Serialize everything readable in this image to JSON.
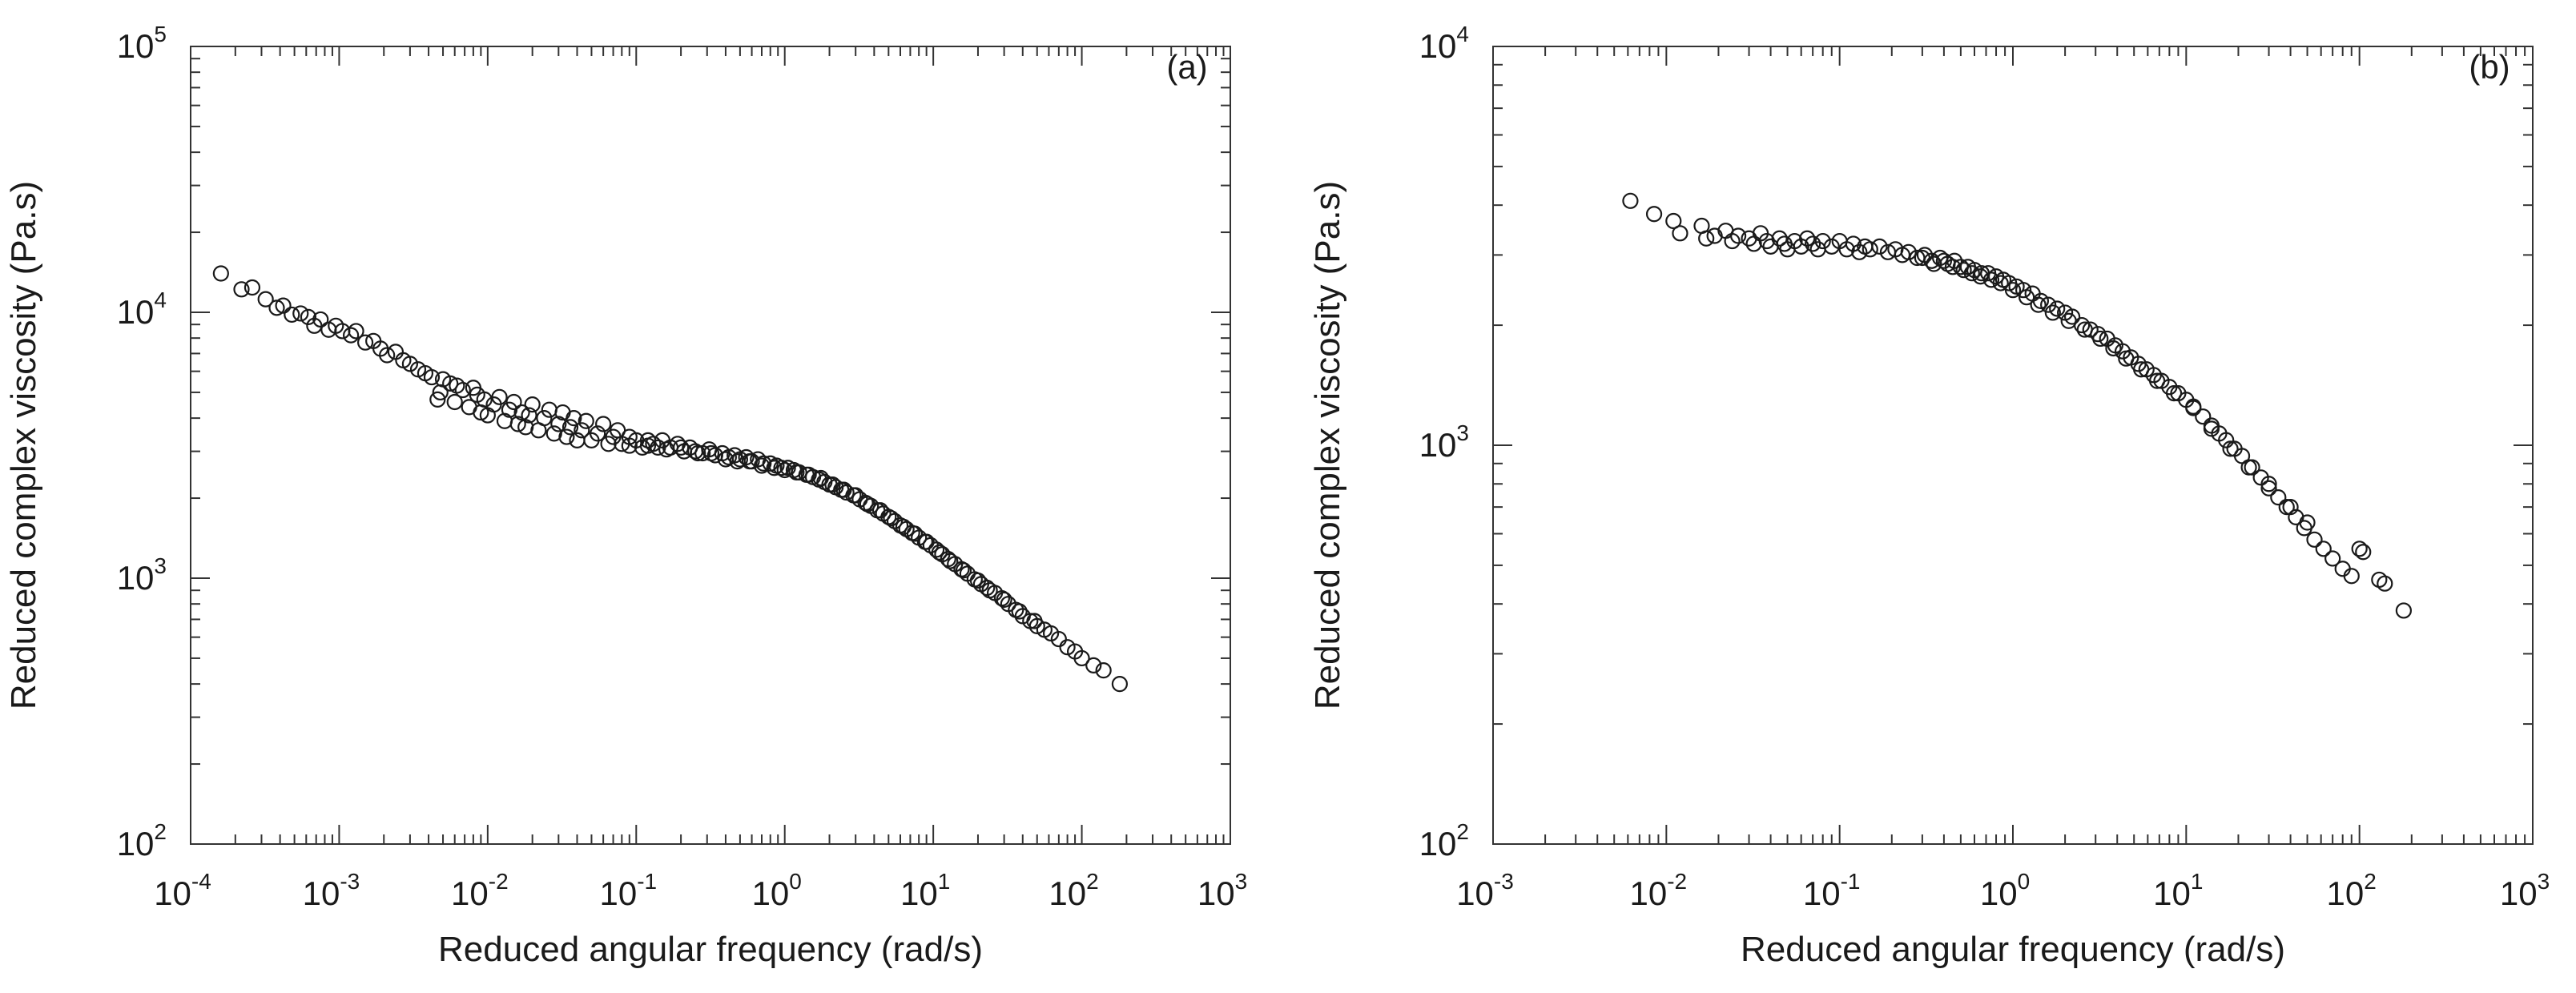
{
  "chart_data": [
    {
      "type": "scatter",
      "panel_label": "(a)",
      "xlabel": "Reduced angular frequency (rad/s)",
      "ylabel": "Reduced complex viscosity (Pa.s)",
      "x_scale": "log",
      "y_scale": "log",
      "xlim": [
        0.0001,
        1000
      ],
      "ylim": [
        100,
        100000
      ],
      "x_ticks": [
        {
          "base": "10",
          "exp": "-4",
          "value": 0.0001
        },
        {
          "base": "10",
          "exp": "-3",
          "value": 0.001
        },
        {
          "base": "10",
          "exp": "-2",
          "value": 0.01
        },
        {
          "base": "10",
          "exp": "-1",
          "value": 0.1
        },
        {
          "base": "10",
          "exp": "0",
          "value": 1
        },
        {
          "base": "10",
          "exp": "1",
          "value": 10
        },
        {
          "base": "10",
          "exp": "2",
          "value": 100
        },
        {
          "base": "10",
          "exp": "3",
          "value": 1000
        }
      ],
      "y_ticks": [
        {
          "base": "10",
          "exp": "2",
          "value": 100
        },
        {
          "base": "10",
          "exp": "3",
          "value": 1000
        },
        {
          "base": "10",
          "exp": "4",
          "value": 10000
        },
        {
          "base": "10",
          "exp": "5",
          "value": 100000
        }
      ],
      "grid": false,
      "marker": "open-circle",
      "color": "#1a1a1a",
      "points": [
        [
          0.00016,
          14000
        ],
        [
          0.00022,
          12200
        ],
        [
          0.00026,
          12400
        ],
        [
          0.00032,
          11200
        ],
        [
          0.00038,
          10400
        ],
        [
          0.00042,
          10600
        ],
        [
          0.00048,
          9800
        ],
        [
          0.00055,
          9900
        ],
        [
          0.00062,
          9600
        ],
        [
          0.00068,
          8900
        ],
        [
          0.00075,
          9400
        ],
        [
          0.00085,
          8600
        ],
        [
          0.00095,
          8900
        ],
        [
          0.00105,
          8500
        ],
        [
          0.0012,
          8200
        ],
        [
          0.0013,
          8500
        ],
        [
          0.0015,
          7700
        ],
        [
          0.0017,
          7800
        ],
        [
          0.0019,
          7300
        ],
        [
          0.0021,
          6900
        ],
        [
          0.0024,
          7100
        ],
        [
          0.0027,
          6600
        ],
        [
          0.003,
          6400
        ],
        [
          0.0034,
          6100
        ],
        [
          0.0038,
          5900
        ],
        [
          0.0042,
          5700
        ],
        [
          0.0046,
          4700
        ],
        [
          0.0048,
          5000
        ],
        [
          0.005,
          5600
        ],
        [
          0.0056,
          5400
        ],
        [
          0.006,
          4600
        ],
        [
          0.0062,
          5300
        ],
        [
          0.0068,
          5100
        ],
        [
          0.0075,
          4400
        ],
        [
          0.008,
          5200
        ],
        [
          0.0085,
          4900
        ],
        [
          0.009,
          4200
        ],
        [
          0.0095,
          4700
        ],
        [
          0.01,
          4100
        ],
        [
          0.011,
          4500
        ],
        [
          0.012,
          4800
        ],
        [
          0.013,
          3900
        ],
        [
          0.014,
          4300
        ],
        [
          0.015,
          4600
        ],
        [
          0.016,
          3800
        ],
        [
          0.017,
          4200
        ],
        [
          0.018,
          3700
        ],
        [
          0.019,
          4100
        ],
        [
          0.02,
          4500
        ],
        [
          0.022,
          3600
        ],
        [
          0.024,
          4000
        ],
        [
          0.026,
          4300
        ],
        [
          0.028,
          3500
        ],
        [
          0.03,
          3800
        ],
        [
          0.032,
          4200
        ],
        [
          0.034,
          3400
        ],
        [
          0.036,
          3700
        ],
        [
          0.038,
          4000
        ],
        [
          0.04,
          3300
        ],
        [
          0.043,
          3600
        ],
        [
          0.046,
          3900
        ],
        [
          0.05,
          3300
        ],
        [
          0.055,
          3500
        ],
        [
          0.06,
          3800
        ],
        [
          0.065,
          3200
        ],
        [
          0.07,
          3400
        ],
        [
          0.075,
          3600
        ],
        [
          0.08,
          3200
        ],
        [
          0.09,
          3400
        ],
        [
          0.1,
          3300
        ],
        [
          0.11,
          3100
        ],
        [
          0.12,
          3300
        ],
        [
          0.13,
          3200
        ],
        [
          0.14,
          3100
        ],
        [
          0.15,
          3300
        ],
        [
          0.17,
          3100
        ],
        [
          0.19,
          3200
        ],
        [
          0.21,
          3000
        ],
        [
          0.23,
          3100
        ],
        [
          0.25,
          3000
        ],
        [
          0.28,
          2950
        ],
        [
          0.31,
          3050
        ],
        [
          0.34,
          2900
        ],
        [
          0.38,
          2950
        ],
        [
          0.42,
          2850
        ],
        [
          0.46,
          2900
        ],
        [
          0.5,
          2800
        ],
        [
          0.55,
          2850
        ],
        [
          0.6,
          2750
        ],
        [
          0.66,
          2800
        ],
        [
          0.72,
          2700
        ],
        [
          0.8,
          2700
        ],
        [
          0.88,
          2650
        ],
        [
          0.95,
          2600
        ],
        [
          1.05,
          2600
        ],
        [
          1.15,
          2550
        ],
        [
          1.25,
          2500
        ],
        [
          1.4,
          2450
        ],
        [
          1.55,
          2400
        ],
        [
          1.7,
          2350
        ],
        [
          1.85,
          2300
        ],
        [
          2.0,
          2250
        ],
        [
          2.2,
          2200
        ],
        [
          2.4,
          2150
        ],
        [
          2.6,
          2100
        ],
        [
          2.9,
          2050
        ],
        [
          3.2,
          1980
        ],
        [
          3.5,
          1920
        ],
        [
          3.8,
          1870
        ],
        [
          4.2,
          1800
        ],
        [
          4.6,
          1750
        ],
        [
          5.0,
          1700
        ],
        [
          5.5,
          1640
        ],
        [
          6.0,
          1580
        ],
        [
          6.6,
          1530
        ],
        [
          7.2,
          1480
        ],
        [
          8.0,
          1420
        ],
        [
          8.8,
          1370
        ],
        [
          9.6,
          1330
        ],
        [
          10.5,
          1280
        ],
        [
          11.5,
          1230
        ],
        [
          12.6,
          1180
        ],
        [
          14,
          1130
        ],
        [
          15.5,
          1080
        ],
        [
          17,
          1040
        ],
        [
          19,
          990
        ],
        [
          21,
          950
        ],
        [
          23,
          920
        ],
        [
          26,
          880
        ],
        [
          29,
          840
        ],
        [
          32,
          800
        ],
        [
          36,
          760
        ],
        [
          40,
          720
        ],
        [
          45,
          690
        ],
        [
          50,
          660
        ],
        [
          56,
          640
        ],
        [
          62,
          620
        ],
        [
          70,
          590
        ],
        [
          80,
          550
        ],
        [
          90,
          530
        ],
        [
          100,
          500
        ],
        [
          120,
          470
        ],
        [
          140,
          450
        ],
        [
          180,
          400
        ],
        [
          0.09,
          3150
        ],
        [
          0.12,
          3150
        ],
        [
          0.16,
          3050
        ],
        [
          0.2,
          3100
        ],
        [
          0.26,
          2950
        ],
        [
          0.32,
          2950
        ],
        [
          0.4,
          2800
        ],
        [
          0.48,
          2750
        ],
        [
          0.58,
          2750
        ],
        [
          0.7,
          2650
        ],
        [
          0.85,
          2600
        ],
        [
          1.0,
          2550
        ],
        [
          1.2,
          2500
        ],
        [
          1.45,
          2450
        ],
        [
          1.75,
          2380
        ],
        [
          2.1,
          2250
        ],
        [
          2.5,
          2150
        ],
        [
          3.0,
          2050
        ],
        [
          3.6,
          1900
        ],
        [
          4.4,
          1800
        ],
        [
          5.2,
          1680
        ],
        [
          6.3,
          1560
        ],
        [
          7.5,
          1470
        ],
        [
          9.0,
          1370
        ],
        [
          11,
          1250
        ],
        [
          13,
          1160
        ],
        [
          16,
          1070
        ],
        [
          20,
          980
        ],
        [
          24,
          900
        ],
        [
          30,
          830
        ],
        [
          38,
          750
        ],
        [
          48,
          690
        ]
      ]
    },
    {
      "type": "scatter",
      "panel_label": "(b)",
      "xlabel": "Reduced angular frequency (rad/s)",
      "ylabel": "Reduced complex viscosity (Pa.s)",
      "x_scale": "log",
      "y_scale": "log",
      "xlim": [
        0.001,
        1000
      ],
      "ylim": [
        100,
        10000
      ],
      "x_ticks": [
        {
          "base": "10",
          "exp": "-3",
          "value": 0.001
        },
        {
          "base": "10",
          "exp": "-2",
          "value": 0.01
        },
        {
          "base": "10",
          "exp": "-1",
          "value": 0.1
        },
        {
          "base": "10",
          "exp": "0",
          "value": 1
        },
        {
          "base": "10",
          "exp": "1",
          "value": 10
        },
        {
          "base": "10",
          "exp": "2",
          "value": 100
        },
        {
          "base": "10",
          "exp": "3",
          "value": 1000
        }
      ],
      "y_ticks": [
        {
          "base": "10",
          "exp": "2",
          "value": 100
        },
        {
          "base": "10",
          "exp": "3",
          "value": 1000
        },
        {
          "base": "10",
          "exp": "4",
          "value": 10000
        }
      ],
      "grid": false,
      "marker": "open-circle",
      "color": "#1a1a1a",
      "points": [
        [
          0.0062,
          4100
        ],
        [
          0.0085,
          3800
        ],
        [
          0.011,
          3650
        ],
        [
          0.012,
          3400
        ],
        [
          0.016,
          3550
        ],
        [
          0.017,
          3300
        ],
        [
          0.019,
          3350
        ],
        [
          0.022,
          3450
        ],
        [
          0.024,
          3250
        ],
        [
          0.026,
          3350
        ],
        [
          0.03,
          3300
        ],
        [
          0.032,
          3200
        ],
        [
          0.035,
          3400
        ],
        [
          0.038,
          3250
        ],
        [
          0.04,
          3150
        ],
        [
          0.045,
          3300
        ],
        [
          0.048,
          3200
        ],
        [
          0.05,
          3100
        ],
        [
          0.055,
          3250
        ],
        [
          0.06,
          3150
        ],
        [
          0.065,
          3300
        ],
        [
          0.07,
          3200
        ],
        [
          0.075,
          3100
        ],
        [
          0.08,
          3250
        ],
        [
          0.09,
          3150
        ],
        [
          0.1,
          3250
        ],
        [
          0.11,
          3100
        ],
        [
          0.12,
          3200
        ],
        [
          0.13,
          3050
        ],
        [
          0.14,
          3150
        ],
        [
          0.15,
          3100
        ],
        [
          0.17,
          3150
        ],
        [
          0.19,
          3050
        ],
        [
          0.21,
          3100
        ],
        [
          0.23,
          3000
        ],
        [
          0.25,
          3050
        ],
        [
          0.28,
          2950
        ],
        [
          0.31,
          3000
        ],
        [
          0.34,
          2900
        ],
        [
          0.38,
          2950
        ],
        [
          0.42,
          2850
        ],
        [
          0.46,
          2900
        ],
        [
          0.5,
          2800
        ],
        [
          0.55,
          2800
        ],
        [
          0.6,
          2750
        ],
        [
          0.66,
          2700
        ],
        [
          0.72,
          2700
        ],
        [
          0.8,
          2650
        ],
        [
          0.88,
          2600
        ],
        [
          0.95,
          2550
        ],
        [
          1.05,
          2500
        ],
        [
          1.15,
          2450
        ],
        [
          1.3,
          2400
        ],
        [
          1.45,
          2300
        ],
        [
          1.6,
          2250
        ],
        [
          1.8,
          2200
        ],
        [
          2.0,
          2150
        ],
        [
          2.2,
          2100
        ],
        [
          2.5,
          2000
        ],
        [
          2.8,
          1950
        ],
        [
          3.1,
          1900
        ],
        [
          3.5,
          1850
        ],
        [
          3.9,
          1780
        ],
        [
          4.3,
          1720
        ],
        [
          4.8,
          1660
        ],
        [
          5.3,
          1600
        ],
        [
          5.9,
          1550
        ],
        [
          6.5,
          1500
        ],
        [
          7.2,
          1450
        ],
        [
          8.0,
          1400
        ],
        [
          9.0,
          1350
        ],
        [
          10,
          1300
        ],
        [
          11,
          1250
        ],
        [
          12.5,
          1180
        ],
        [
          14,
          1120
        ],
        [
          15.5,
          1070
        ],
        [
          17,
          1030
        ],
        [
          19,
          980
        ],
        [
          21,
          940
        ],
        [
          24,
          880
        ],
        [
          27,
          830
        ],
        [
          30,
          780
        ],
        [
          34,
          740
        ],
        [
          38,
          700
        ],
        [
          43,
          660
        ],
        [
          48,
          620
        ],
        [
          55,
          580
        ],
        [
          62,
          550
        ],
        [
          70,
          520
        ],
        [
          80,
          490
        ],
        [
          90,
          470
        ],
        [
          100,
          550
        ],
        [
          105,
          540
        ],
        [
          130,
          460
        ],
        [
          140,
          450
        ],
        [
          180,
          385
        ],
        [
          0.3,
          2950
        ],
        [
          0.35,
          2850
        ],
        [
          0.4,
          2900
        ],
        [
          0.45,
          2800
        ],
        [
          0.52,
          2750
        ],
        [
          0.58,
          2700
        ],
        [
          0.65,
          2650
        ],
        [
          0.75,
          2600
        ],
        [
          0.85,
          2550
        ],
        [
          1.0,
          2450
        ],
        [
          1.2,
          2350
        ],
        [
          1.4,
          2250
        ],
        [
          1.7,
          2150
        ],
        [
          2.1,
          2050
        ],
        [
          2.6,
          1950
        ],
        [
          3.2,
          1850
        ],
        [
          3.8,
          1750
        ],
        [
          4.5,
          1650
        ],
        [
          5.5,
          1550
        ],
        [
          6.8,
          1450
        ],
        [
          8.5,
          1350
        ],
        [
          11,
          1240
        ],
        [
          14,
          1100
        ],
        [
          18,
          980
        ],
        [
          23,
          880
        ],
        [
          30,
          800
        ],
        [
          40,
          700
        ],
        [
          50,
          640
        ]
      ]
    }
  ]
}
